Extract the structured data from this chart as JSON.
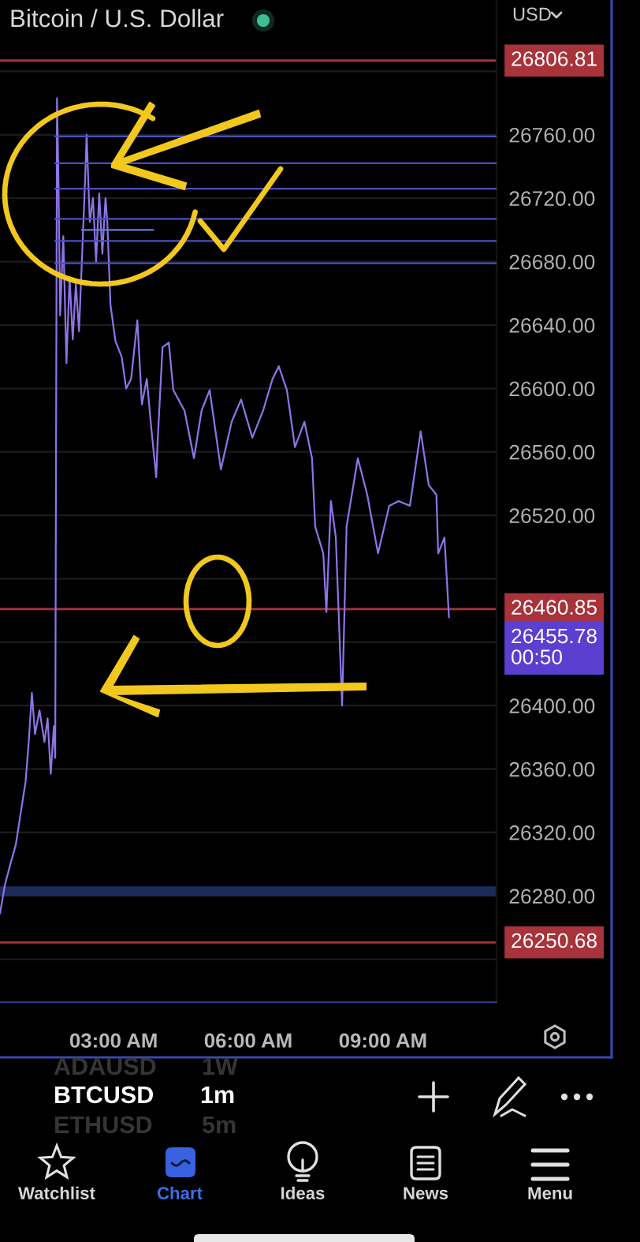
{
  "chart_data": {
    "type": "line",
    "title": "Bitcoin / U.S. Dollar",
    "x": [
      0.47,
      0.58,
      0.72,
      0.82,
      0.93,
      1.04,
      1.11,
      1.18,
      1.25,
      1.35,
      1.46,
      1.53,
      1.6,
      1.67,
      1.7,
      1.74,
      1.77,
      1.81,
      1.88,
      1.95,
      2.02,
      2.09,
      2.16,
      2.23,
      2.3,
      2.37,
      2.4,
      2.47,
      2.54,
      2.61,
      2.68,
      2.75,
      2.82,
      2.86,
      2.93,
      3.04,
      3.18,
      3.28,
      3.39,
      3.53,
      3.63,
      3.74,
      3.84,
      3.95,
      3.98,
      4.09,
      4.23,
      4.33,
      4.58,
      4.79,
      4.96,
      5.14,
      5.39,
      5.63,
      5.84,
      6.09,
      6.33,
      6.54,
      6.68,
      6.86,
      7.04,
      7.25,
      7.42,
      7.49,
      7.67,
      7.74,
      7.84,
      7.95,
      8.09,
      8.19,
      8.44,
      8.65,
      8.89,
      9.14,
      9.35,
      9.6,
      9.84,
      10.02,
      10.19,
      10.23,
      10.37,
      10.47
    ],
    "series": [
      {
        "color": "#8f74e8",
        "values": [
          26269,
          26287,
          26302,
          26312,
          26332,
          26352,
          26377,
          26408,
          26382,
          26397,
          26377,
          26392,
          26357,
          26387,
          26367,
          26783,
          26735,
          26646,
          26696,
          26616,
          26670,
          26631,
          26666,
          26636,
          26685,
          26735,
          26760,
          26705,
          26720,
          26680,
          26723,
          26685,
          26720,
          26705,
          26653,
          26630,
          26620,
          26600,
          26606,
          26643,
          26590,
          26606,
          26575,
          26544,
          26566,
          26626,
          26629,
          26599,
          26586,
          26556,
          26586,
          26599,
          26549,
          26579,
          26593,
          26569,
          26586,
          26606,
          26614,
          26599,
          26563,
          26579,
          26556,
          26513,
          26496,
          26459,
          26529,
          26506,
          26400,
          26513,
          26556,
          26533,
          26496,
          26526,
          26529,
          26526,
          26573,
          26539,
          26533,
          26496,
          26506,
          26455.78
        ]
      },
      {
        "x": [
          1.7,
          11.53
        ],
        "values": [
          26759,
          26759
        ],
        "color": "#4c4fc0"
      },
      {
        "x": [
          1.7,
          11.53
        ],
        "values": [
          26742,
          26742
        ],
        "color": "#4c4fc0"
      },
      {
        "x": [
          1.7,
          11.53
        ],
        "values": [
          26726,
          26726
        ],
        "color": "#4c4fc0"
      },
      {
        "x": [
          1.7,
          11.53
        ],
        "values": [
          26707,
          26707
        ],
        "color": "#4c4fc0"
      },
      {
        "x": [
          1.7,
          11.53
        ],
        "values": [
          26693,
          26693
        ],
        "color": "#4c4fc0"
      },
      {
        "x": [
          1.7,
          11.53
        ],
        "values": [
          26679,
          26679
        ],
        "color": "#4c4fc0"
      },
      {
        "x": [
          2.3,
          3.88
        ],
        "values": [
          26700,
          26700
        ],
        "color": "#5a80d8"
      }
    ],
    "xlim": [
      0.47,
      11.53
    ],
    "xticks": [
      {
        "value": 3,
        "label": "03:00 AM"
      },
      {
        "value": 6,
        "label": "06:00 AM"
      },
      {
        "value": 9,
        "label": "09:00 AM"
      }
    ],
    "ylim": [
      26213,
      26845
    ],
    "yticks": [
      {
        "value": 26240,
        "label": null
      },
      {
        "value": 26280,
        "label": "26280.00"
      },
      {
        "value": 26320,
        "label": "26320.00"
      },
      {
        "value": 26360,
        "label": "26360.00"
      },
      {
        "value": 26400,
        "label": "26400.00"
      },
      {
        "value": 26440,
        "label": null
      },
      {
        "value": 26480,
        "label": null
      },
      {
        "value": 26520,
        "label": "26520.00"
      },
      {
        "value": 26560,
        "label": "26560.00"
      },
      {
        "value": 26600,
        "label": "26600.00"
      },
      {
        "value": 26640,
        "label": "26640.00"
      },
      {
        "value": 26680,
        "label": "26680.00"
      },
      {
        "value": 26720,
        "label": "26720.00"
      },
      {
        "value": 26760,
        "label": "26760.00"
      },
      {
        "value": 26800,
        "label": null
      }
    ],
    "grid": "y",
    "ref_lines": [
      {
        "axis": "y",
        "value": 26806.81,
        "label": "26806.81",
        "color": "#a8333a"
      },
      {
        "axis": "y",
        "value": 26460.85,
        "label": "26460.85",
        "color": "#a8333a"
      },
      {
        "axis": "y",
        "value": 26250.68,
        "label": "26250.68",
        "color": "#a8333a"
      }
    ],
    "bands": [
      {
        "axis": "y",
        "from": 26280,
        "to": 26286,
        "color": "#1d2b5b"
      }
    ],
    "annotations": [
      "26455.78\n00:50",
      "USD",
      "ADAUSD",
      "1W",
      "BTCUSD",
      "1m",
      "ETHUSD",
      "5m",
      "Watchlist",
      "Chart",
      "Ideas",
      "News",
      "Menu"
    ]
  }
}
